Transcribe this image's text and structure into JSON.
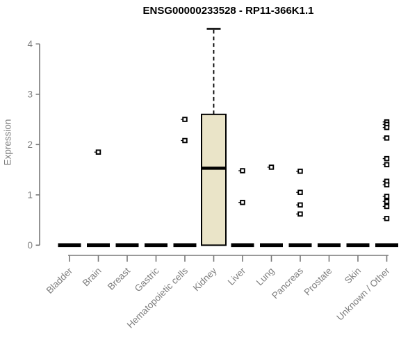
{
  "chart_data": {
    "type": "boxplot",
    "title": "ENSG00000233528 - RP11-366K1.1",
    "ylabel": "Expression",
    "xlabel": "",
    "ylim": [
      0,
      4.35
    ],
    "yticks": [
      0,
      1,
      2,
      3,
      4
    ],
    "grid": false,
    "legend": false,
    "categories": [
      "Bladder",
      "Brain",
      "Breast",
      "Gastric",
      "Hematopoietic cells",
      "Kidney",
      "Liver",
      "Lung",
      "Pancreas",
      "Prostate",
      "Skin",
      "Unknown / Other"
    ],
    "series": [
      {
        "category": "Bladder",
        "q1": 0,
        "median": 0,
        "q3": 0,
        "whisker_low": 0,
        "whisker_high": 0,
        "outliers": []
      },
      {
        "category": "Brain",
        "q1": 0,
        "median": 0,
        "q3": 0,
        "whisker_low": 0,
        "whisker_high": 0,
        "outliers": [
          1.85
        ]
      },
      {
        "category": "Breast",
        "q1": 0,
        "median": 0,
        "q3": 0,
        "whisker_low": 0,
        "whisker_high": 0,
        "outliers": []
      },
      {
        "category": "Gastric",
        "q1": 0,
        "median": 0,
        "q3": 0,
        "whisker_low": 0,
        "whisker_high": 0,
        "outliers": []
      },
      {
        "category": "Hematopoietic cells",
        "q1": 0,
        "median": 0,
        "q3": 0,
        "whisker_low": 0,
        "whisker_high": 0,
        "outliers": [
          2.5,
          2.08
        ]
      },
      {
        "category": "Kidney",
        "q1": 0,
        "median": 1.53,
        "q3": 2.6,
        "whisker_low": 0,
        "whisker_high": 4.3,
        "outliers": []
      },
      {
        "category": "Liver",
        "q1": 0,
        "median": 0,
        "q3": 0,
        "whisker_low": 0,
        "whisker_high": 0,
        "outliers": [
          1.48,
          0.85
        ]
      },
      {
        "category": "Lung",
        "q1": 0,
        "median": 0,
        "q3": 0,
        "whisker_low": 0,
        "whisker_high": 0,
        "outliers": [
          1.55
        ]
      },
      {
        "category": "Pancreas",
        "q1": 0,
        "median": 0,
        "q3": 0,
        "whisker_low": 0,
        "whisker_high": 0,
        "outliers": [
          1.47,
          1.05,
          0.8,
          0.62
        ]
      },
      {
        "category": "Prostate",
        "q1": 0,
        "median": 0,
        "q3": 0,
        "whisker_low": 0,
        "whisker_high": 0,
        "outliers": []
      },
      {
        "category": "Skin",
        "q1": 0,
        "median": 0,
        "q3": 0,
        "whisker_low": 0,
        "whisker_high": 0,
        "outliers": []
      },
      {
        "category": "Unknown / Other",
        "q1": 0,
        "median": 0,
        "q3": 0,
        "whisker_low": 0,
        "whisker_high": 0,
        "outliers": [
          2.45,
          2.4,
          2.34,
          2.13,
          1.72,
          1.6,
          1.27,
          1.2,
          0.97,
          0.87,
          0.77,
          0.53
        ]
      }
    ],
    "colors": {
      "box_fill": "#EAE4C8",
      "box_border": "#000000",
      "median": "#000000",
      "whisker": "#000000",
      "outlier": "#000000",
      "axis": "#787878",
      "tick_text": "#7E7E7E",
      "title_text": "#000000",
      "background": "#FFFFFF"
    }
  }
}
